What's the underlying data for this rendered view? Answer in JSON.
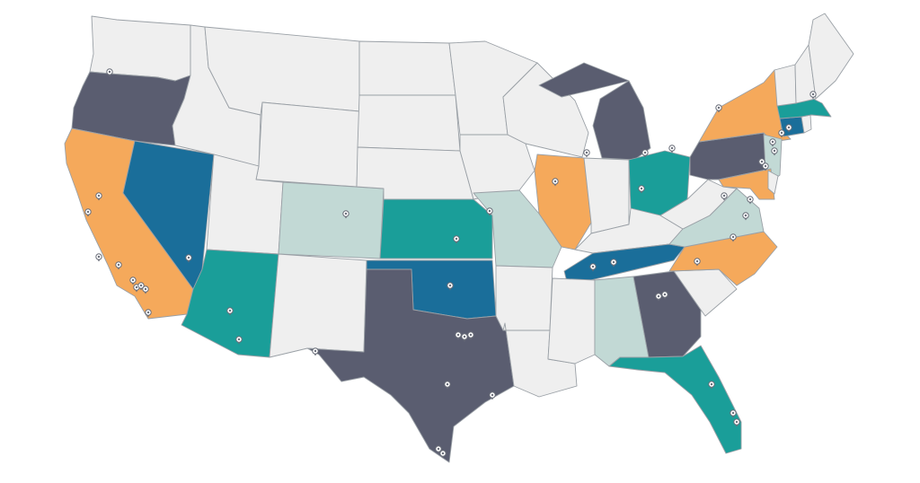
{
  "map": {
    "palette": {
      "none": "#efefef",
      "slate": "#5a5d70",
      "orange": "#f5a95b",
      "teal": "#1a9e99",
      "blue": "#1a6e9a",
      "sage": "#c2d9d5",
      "border": "#9aa0a6"
    },
    "states": [
      {
        "id": "WA",
        "fill": "none"
      },
      {
        "id": "OR",
        "fill": "slate"
      },
      {
        "id": "CA",
        "fill": "orange"
      },
      {
        "id": "NV",
        "fill": "blue"
      },
      {
        "id": "ID",
        "fill": "none"
      },
      {
        "id": "MT",
        "fill": "none"
      },
      {
        "id": "WY",
        "fill": "none"
      },
      {
        "id": "UT",
        "fill": "none"
      },
      {
        "id": "AZ",
        "fill": "teal"
      },
      {
        "id": "CO",
        "fill": "sage"
      },
      {
        "id": "NM",
        "fill": "none"
      },
      {
        "id": "ND",
        "fill": "none"
      },
      {
        "id": "SD",
        "fill": "none"
      },
      {
        "id": "NE",
        "fill": "none"
      },
      {
        "id": "KS",
        "fill": "teal"
      },
      {
        "id": "OK",
        "fill": "blue"
      },
      {
        "id": "TX",
        "fill": "slate"
      },
      {
        "id": "MN",
        "fill": "none"
      },
      {
        "id": "IA",
        "fill": "none"
      },
      {
        "id": "MO",
        "fill": "sage"
      },
      {
        "id": "AR",
        "fill": "none"
      },
      {
        "id": "LA",
        "fill": "none"
      },
      {
        "id": "WI",
        "fill": "none"
      },
      {
        "id": "IL",
        "fill": "orange"
      },
      {
        "id": "MI",
        "fill": "slate"
      },
      {
        "id": "IN",
        "fill": "none"
      },
      {
        "id": "OH",
        "fill": "teal"
      },
      {
        "id": "KY",
        "fill": "none"
      },
      {
        "id": "TN",
        "fill": "blue"
      },
      {
        "id": "MS",
        "fill": "none"
      },
      {
        "id": "AL",
        "fill": "sage"
      },
      {
        "id": "GA",
        "fill": "slate"
      },
      {
        "id": "FL",
        "fill": "teal"
      },
      {
        "id": "SC",
        "fill": "none"
      },
      {
        "id": "NC",
        "fill": "orange"
      },
      {
        "id": "VA",
        "fill": "sage"
      },
      {
        "id": "WV",
        "fill": "none"
      },
      {
        "id": "PA",
        "fill": "slate"
      },
      {
        "id": "NY",
        "fill": "orange"
      },
      {
        "id": "NJ",
        "fill": "sage"
      },
      {
        "id": "MD",
        "fill": "orange"
      },
      {
        "id": "DE",
        "fill": "none"
      },
      {
        "id": "CT",
        "fill": "blue"
      },
      {
        "id": "RI",
        "fill": "none"
      },
      {
        "id": "MA",
        "fill": "teal"
      },
      {
        "id": "VT",
        "fill": "none"
      },
      {
        "id": "NH",
        "fill": "none"
      },
      {
        "id": "ME",
        "fill": "none"
      }
    ],
    "marker_icon": "location-pin-icon"
  }
}
